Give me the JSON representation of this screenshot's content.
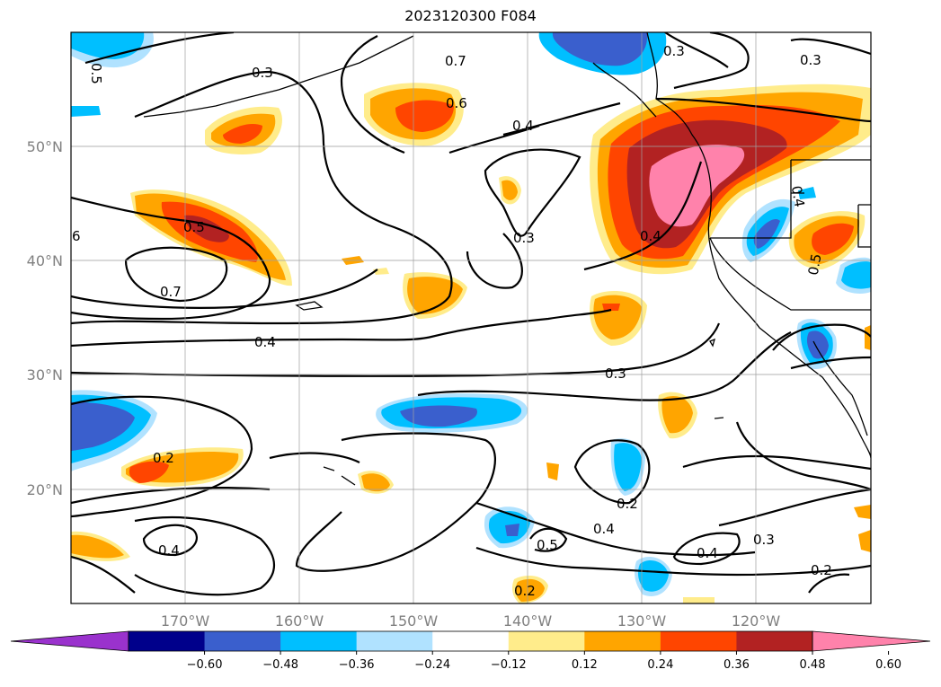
{
  "title": "2023120300 F084",
  "axes": {
    "lon_ticks": [
      "170°W",
      "160°W",
      "150°W",
      "140°W",
      "130°W",
      "120°W"
    ],
    "lat_ticks": [
      "50°N",
      "40°N",
      "30°N",
      "20°N"
    ],
    "lon_range": [
      -180,
      -110
    ],
    "lat_range": [
      10,
      60
    ]
  },
  "colorbar": {
    "ticks": [
      "−0.60",
      "−0.48",
      "−0.36",
      "−0.24",
      "−0.12",
      "0.12",
      "0.24",
      "0.36",
      "0.48",
      "0.60"
    ],
    "colors": [
      "#9a32cd",
      "#00008b",
      "#3a5fcd",
      "#00bfff",
      "#b0e2ff",
      "#ffffff",
      "#ffec8b",
      "#ffa500",
      "#ff4500",
      "#b22222",
      "#ff82ab"
    ],
    "extend": "both"
  },
  "contour_labels": [
    "0.3",
    "0.7",
    "0.6",
    "0.4",
    "0.3",
    "0.3",
    "0.5",
    "6",
    "0.7",
    "0.4",
    "0.3",
    "0.3",
    "0.2",
    "0.2",
    "0.4",
    "0.4",
    "0.5",
    "0.4",
    "0.3",
    "0.2",
    "0.2",
    "0.4",
    "0.5",
    "0.4",
    "0.5"
  ]
}
